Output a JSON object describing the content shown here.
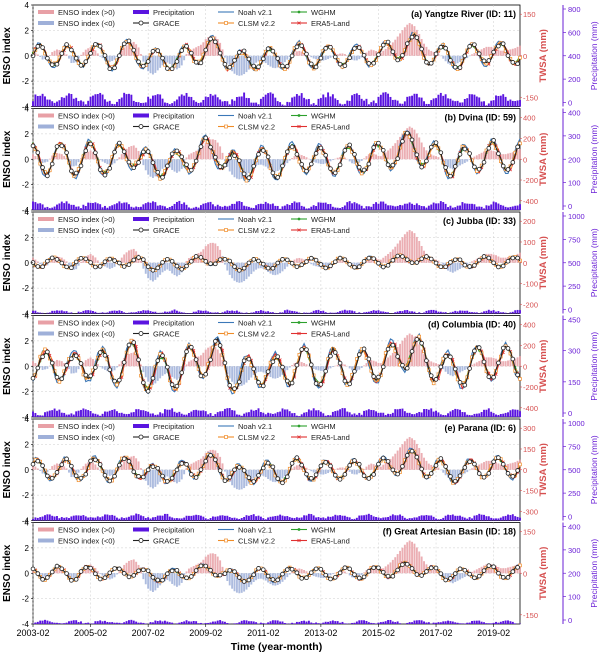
{
  "figure": {
    "xlabel": "Time (year-month)",
    "xticks": [
      "2003-02",
      "2005-02",
      "2007-02",
      "2009-02",
      "2011-02",
      "2013-02",
      "2015-02",
      "2017-02",
      "2019-02"
    ],
    "left_label": "ENSO index",
    "mid_label": "TWSA (mm)",
    "right_label": "Precipitation (mm)",
    "enso_ticks": [
      "4",
      "2",
      "0",
      "-2",
      "-4"
    ],
    "legend": [
      "ENSO index (>0)",
      "ENSO index (<0)",
      "Precipitation",
      "GRACE",
      "Noah v2.1",
      "CLSM v2.2",
      "WGHM",
      "ERA5-Land"
    ]
  },
  "colors": {
    "enso_pos": "#e8a0a6",
    "enso_neg": "#9fb0d9",
    "precip": "#5a14e0",
    "grace": "#222222",
    "noah": "#3b78b8",
    "clsm": "#f08c28",
    "wghm": "#2ca02c",
    "era5": "#e03030",
    "twsa_axis": "#d65050",
    "precip_axis": "#6a1fd6"
  },
  "chart_data": [
    {
      "type": "line",
      "title": "(a) Yangtze River (ID: 11)",
      "twsa_ticks": [
        "150",
        "0",
        "-150"
      ],
      "precip_ticks": [
        "800",
        "600",
        "400",
        "200",
        "0"
      ],
      "twsa_amp": 38,
      "twsa_mean": -2,
      "precip_mean": 330,
      "precip_amp": 230,
      "precip_max": 900
    },
    {
      "type": "line",
      "title": "(b) Dvina (ID: 59)",
      "twsa_ticks": [
        "400",
        "200",
        "0",
        "-200",
        "-400"
      ],
      "precip_ticks": [
        "400",
        "300",
        "200",
        "100",
        "0"
      ],
      "twsa_amp": 130,
      "twsa_mean": 0,
      "precip_mean": 110,
      "precip_amp": 70,
      "precip_max": 450
    },
    {
      "type": "line",
      "title": "(c) Jubba (ID: 33)",
      "twsa_ticks": [
        "200",
        "100",
        "0",
        "-100",
        "-200"
      ],
      "precip_ticks": [
        "1000",
        "750",
        "500",
        "250",
        "0"
      ],
      "twsa_amp": 22,
      "twsa_mean": 0,
      "precip_mean": 90,
      "precip_amp": 80,
      "precip_max": 1000
    },
    {
      "type": "line",
      "title": "(d) Columbia (ID: 40)",
      "twsa_ticks": [
        "400",
        "200",
        "0",
        "-200",
        "-400"
      ],
      "precip_ticks": [
        "450",
        "300",
        "150",
        "0"
      ],
      "twsa_amp": 160,
      "twsa_mean": 0,
      "precip_mean": 120,
      "precip_amp": 80,
      "precip_max": 500
    },
    {
      "type": "line",
      "title": "(e) Parana (ID: 6)",
      "twsa_ticks": [
        "300",
        "150",
        "0",
        "-150",
        "-300"
      ],
      "precip_ticks": [
        "1000",
        "750",
        "500",
        "250",
        "0"
      ],
      "twsa_amp": 70,
      "twsa_mean": 0,
      "precip_mean": 190,
      "precip_amp": 110,
      "precip_max": 1000
    },
    {
      "type": "line",
      "title": "(f) Great Artesian Basin (ID: 18)",
      "twsa_ticks": [
        "150",
        "0",
        "-150"
      ],
      "precip_ticks": [
        "400",
        "300",
        "200",
        "100",
        "0"
      ],
      "twsa_amp": 20,
      "twsa_mean": 0,
      "precip_mean": 40,
      "precip_amp": 35,
      "precip_max": 420
    }
  ],
  "enso_series": [
    0.4,
    0.1,
    -0.3,
    -0.2,
    0.3,
    0.5,
    0.4,
    0.1,
    -0.6,
    -0.5,
    0.1,
    0.5,
    0.7,
    0.4,
    -0.1,
    -0.3,
    -0.5,
    -0.3,
    0.2,
    0.7,
    1.0,
    1.1,
    0.6,
    -0.6,
    -1.3,
    -1.5,
    -1.1,
    -0.7,
    -0.5,
    -0.9,
    -1.1,
    -0.7,
    0.3,
    0.5,
    0.7,
    0.9,
    1.4,
    1.6,
    1.5,
    0.9,
    -0.4,
    -1.1,
    -1.5,
    -1.6,
    -1.4,
    -1.0,
    -0.6,
    -0.4,
    -0.5,
    -0.8,
    -1.0,
    -0.9,
    -0.6,
    -0.2,
    0.2,
    0.4,
    0.3,
    0.1,
    -0.2,
    -0.3,
    -0.4,
    -0.3,
    -0.1,
    0.1,
    0.2,
    0.1,
    -0.3,
    -0.4,
    -0.2,
    0.2,
    0.5,
    0.4,
    0.2,
    0.5,
    0.8,
    1.2,
    1.7,
    2.2,
    2.6,
    2.4,
    1.8,
    1.0,
    0.5,
    0.3,
    0.2,
    -0.2,
    -0.6,
    -0.8,
    -0.6,
    -0.4,
    -0.2,
    0.1,
    0.3,
    0.5,
    0.7,
    0.7,
    0.6,
    0.4,
    0.4,
    0.5,
    0.6,
    0.8
  ]
}
